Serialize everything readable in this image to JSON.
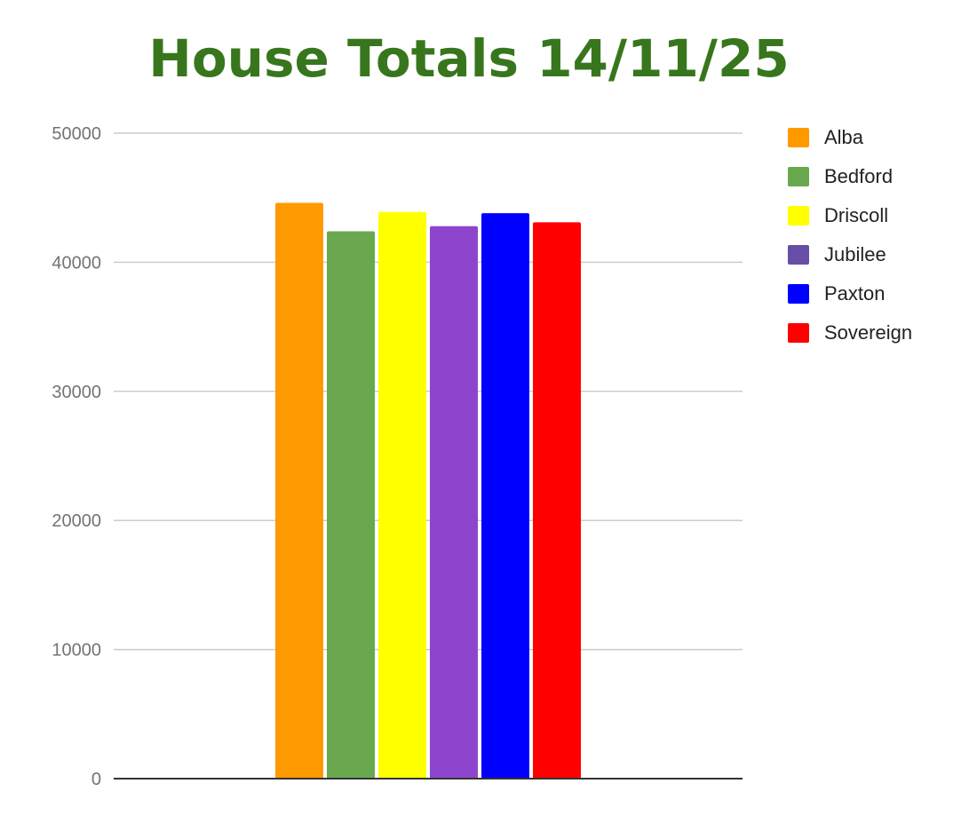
{
  "chart_data": {
    "type": "bar",
    "title": "House Totals 14/11/25",
    "title_color": "#38761d",
    "xlabel": "",
    "ylabel": "",
    "ylim": [
      0,
      50000
    ],
    "yticks": [
      "0",
      "10000",
      "20000",
      "30000",
      "40000",
      "50000"
    ],
    "grid": true,
    "legend_position": "right",
    "series": [
      {
        "name": "Alba",
        "values": [
          44600
        ],
        "color": "#ff9900"
      },
      {
        "name": "Bedford",
        "values": [
          42400
        ],
        "color": "#6aa84f"
      },
      {
        "name": "Driscoll",
        "values": [
          43900
        ],
        "color": "#ffff00"
      },
      {
        "name": "Jubilee",
        "values": [
          42800
        ],
        "color": "#8e44cc"
      },
      {
        "name": "Paxton",
        "values": [
          43800
        ],
        "color": "#0000ff"
      },
      {
        "name": "Sovereign",
        "values": [
          43100
        ],
        "color": "#ff0000"
      }
    ],
    "legend_swatch_colors": [
      "#ff9900",
      "#6aa84f",
      "#ffff00",
      "#674ea7",
      "#0000ff",
      "#ff0000"
    ]
  }
}
